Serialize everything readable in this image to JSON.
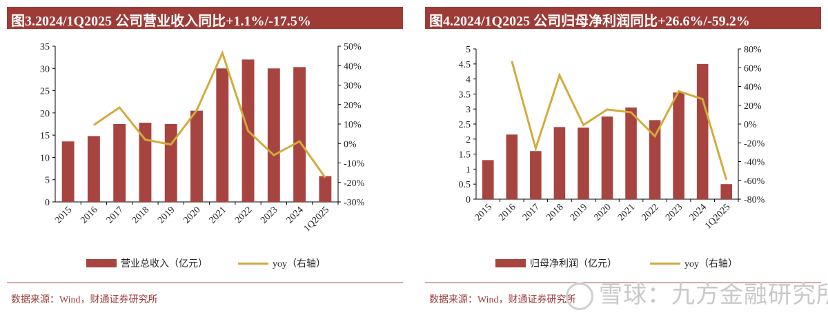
{
  "charts": [
    {
      "title": "图3.2024/1Q2025 公司营业收入同比+1.1%/-17.5%",
      "legend": {
        "bar_label": "营业总收入（亿元）",
        "line_label": "yoy（右轴）"
      },
      "source": "数据来源：Wind，财通证券研究所"
    },
    {
      "title": "图4.2024/1Q2025 公司归母净利润同比+26.6%/-59.2%",
      "legend": {
        "bar_label": "归母净利润（亿元）",
        "line_label": "yoy（右轴）"
      },
      "source": "数据来源：Wind，财通证券研究所"
    }
  ],
  "watermark": "雪球：九方金融研究所",
  "colors": {
    "bar": "#a84440",
    "line": "#d2ab3b",
    "title_bg": "#9e3b37"
  },
  "chart_data": [
    {
      "type": "bar",
      "title": "图3.2024/1Q2025 公司营业收入同比+1.1%/-17.5%",
      "categories": [
        "2015",
        "2016",
        "2017",
        "2018",
        "2019",
        "2020",
        "2021",
        "2022",
        "2023",
        "2024",
        "1Q2025"
      ],
      "series": [
        {
          "name": "营业总收入（亿元）",
          "type": "bar",
          "axis": "left",
          "values": [
            13.6,
            14.8,
            17.5,
            17.8,
            17.5,
            20.5,
            30.0,
            32.0,
            30.0,
            30.3,
            5.8
          ]
        },
        {
          "name": "yoy（右轴）",
          "type": "line",
          "axis": "right",
          "values": [
            null,
            9.5,
            18.5,
            2.0,
            -0.5,
            17.0,
            46.5,
            6.5,
            -6.0,
            1.1,
            -17.5
          ]
        }
      ],
      "left_axis": {
        "ylim": [
          0,
          35
        ],
        "ticks": [
          0,
          5,
          10,
          15,
          20,
          25,
          30,
          35
        ]
      },
      "right_axis": {
        "ylim": [
          -30,
          50
        ],
        "ticks": [
          "-30%",
          "-20%",
          "-10%",
          "0%",
          "10%",
          "20%",
          "30%",
          "40%",
          "50%"
        ]
      }
    },
    {
      "type": "bar",
      "title": "图4.2024/1Q2025 公司归母净利润同比+26.6%/-59.2%",
      "categories": [
        "2015",
        "2016",
        "2017",
        "2018",
        "2019",
        "2020",
        "2021",
        "2022",
        "2023",
        "2024",
        "1Q2025"
      ],
      "series": [
        {
          "name": "归母净利润（亿元）",
          "type": "bar",
          "axis": "left",
          "values": [
            1.3,
            2.15,
            1.6,
            2.4,
            2.38,
            2.75,
            3.05,
            2.63,
            3.55,
            4.5,
            0.5
          ]
        },
        {
          "name": "yoy（右轴）",
          "type": "line",
          "axis": "right",
          "values": [
            null,
            67.0,
            -26.0,
            52.0,
            -1.0,
            15.5,
            12.5,
            -13.0,
            35.0,
            26.6,
            -59.2
          ]
        }
      ],
      "left_axis": {
        "ylim": [
          0,
          5
        ],
        "ticks": [
          "0",
          "0.5",
          "1",
          "1.5",
          "2",
          "2.5",
          "3",
          "3.5",
          "4",
          "4.5",
          "5"
        ]
      },
      "right_axis": {
        "ylim": [
          -80,
          80
        ],
        "ticks": [
          "-80%",
          "-60%",
          "-40%",
          "-20%",
          "0%",
          "20%",
          "40%",
          "60%",
          "80%"
        ]
      }
    }
  ]
}
